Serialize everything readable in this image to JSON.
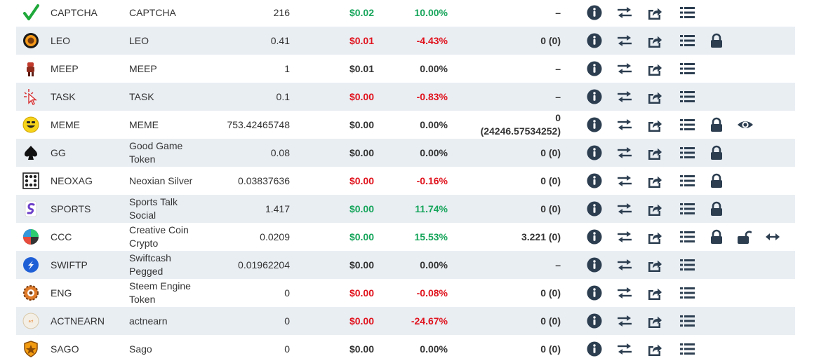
{
  "colors": {
    "positive": "#17a55b",
    "negative": "#e0141e",
    "icon": "#2c3e50",
    "row_alt": "#e9eef3"
  },
  "tokens": [
    {
      "symbol": "CAPTCHA",
      "name": "CAPTCHA",
      "balance": "216",
      "price": "$0.02",
      "price_trend": "positive",
      "change": "10.00%",
      "change_trend": "positive",
      "stake": "–",
      "logo": "green-checkmark-icon",
      "actions": [
        "info",
        "transfer",
        "share",
        "list"
      ]
    },
    {
      "symbol": "LEO",
      "name": "LEO",
      "balance": "0.41",
      "price": "$0.01",
      "price_trend": "negative",
      "change": "-4.43%",
      "change_trend": "negative",
      "stake": "0 (0)",
      "logo": "leo-lion-icon",
      "actions": [
        "info",
        "transfer",
        "share",
        "list",
        "lock"
      ]
    },
    {
      "symbol": "MEEP",
      "name": "MEEP",
      "balance": "1",
      "price": "$0.01",
      "price_trend": "neutral",
      "change": "0.00%",
      "change_trend": "neutral",
      "stake": "–",
      "logo": "meep-figure-icon",
      "actions": [
        "info",
        "transfer",
        "share",
        "list"
      ]
    },
    {
      "symbol": "TASK",
      "name": "TASK",
      "balance": "0.1",
      "price": "$0.00",
      "price_trend": "negative",
      "change": "-0.83%",
      "change_trend": "negative",
      "stake": "–",
      "logo": "cursor-click-icon",
      "actions": [
        "info",
        "transfer",
        "share",
        "list"
      ]
    },
    {
      "symbol": "MEME",
      "name": "MEME",
      "balance": "753.42465748",
      "price": "$0.00",
      "price_trend": "neutral",
      "change": "0.00%",
      "change_trend": "neutral",
      "stake": "0",
      "stake_sub": "(24246.57534252)",
      "logo": "smiley-face-icon",
      "actions": [
        "info",
        "transfer",
        "share",
        "list",
        "lock",
        "eye"
      ]
    },
    {
      "symbol": "GG",
      "name": "Good Game",
      "name_2": "Token",
      "balance": "0.08",
      "price": "$0.00",
      "price_trend": "neutral",
      "change": "0.00%",
      "change_trend": "neutral",
      "stake": "0 (0)",
      "logo": "spade-icon",
      "actions": [
        "info",
        "transfer",
        "share",
        "list",
        "lock"
      ]
    },
    {
      "symbol": "NEOXAG",
      "name": "Neoxian Silver",
      "balance": "0.03837636",
      "price": "$0.00",
      "price_trend": "negative",
      "change": "-0.16%",
      "change_trend": "negative",
      "stake": "0 (0)",
      "logo": "dice-pattern-icon",
      "actions": [
        "info",
        "transfer",
        "share",
        "list",
        "lock"
      ]
    },
    {
      "symbol": "SPORTS",
      "name": "Sports Talk",
      "name_2": "Social",
      "balance": "1.417",
      "price": "$0.00",
      "price_trend": "positive",
      "change": "11.74%",
      "change_trend": "positive",
      "stake": "0 (0)",
      "logo": "sports-s-icon",
      "actions": [
        "info",
        "transfer",
        "share",
        "list",
        "lock"
      ]
    },
    {
      "symbol": "CCC",
      "name": "Creative Coin",
      "name_2": "Crypto",
      "balance": "0.0209",
      "price": "$0.00",
      "price_trend": "positive",
      "change": "15.53%",
      "change_trend": "positive",
      "stake": "3.221 (0)",
      "logo": "creative-coin-icon",
      "actions": [
        "info",
        "transfer",
        "share",
        "list",
        "lock",
        "unlock",
        "arrows"
      ]
    },
    {
      "symbol": "SWIFTP",
      "name": "Swiftcash",
      "name_2": "Pegged",
      "balance": "0.01962204",
      "price": "$0.00",
      "price_trend": "neutral",
      "change": "0.00%",
      "change_trend": "neutral",
      "stake": "–",
      "logo": "swift-circle-icon",
      "actions": [
        "info",
        "transfer",
        "share",
        "list"
      ]
    },
    {
      "symbol": "ENG",
      "name": "Steem Engine",
      "name_2": "Token",
      "balance": "0",
      "price": "$0.00",
      "price_trend": "negative",
      "change": "-0.08%",
      "change_trend": "negative",
      "stake": "0 (0)",
      "logo": "gear-icon",
      "actions": [
        "info",
        "transfer",
        "share",
        "list"
      ]
    },
    {
      "symbol": "ACTNEARN",
      "name": "actnearn",
      "balance": "0",
      "price": "$0.00",
      "price_trend": "negative",
      "change": "-24.67%",
      "change_trend": "negative",
      "stake": "0 (0)",
      "logo": "actnearn-badge-icon",
      "actions": [
        "info",
        "transfer",
        "share",
        "list"
      ]
    },
    {
      "symbol": "SAGO",
      "name": "Sago",
      "balance": "0",
      "price": "$0.00",
      "price_trend": "neutral",
      "change": "0.00%",
      "change_trend": "neutral",
      "stake": "0 (0)",
      "logo": "shield-crest-icon",
      "actions": [
        "info",
        "transfer",
        "share",
        "list"
      ]
    }
  ]
}
